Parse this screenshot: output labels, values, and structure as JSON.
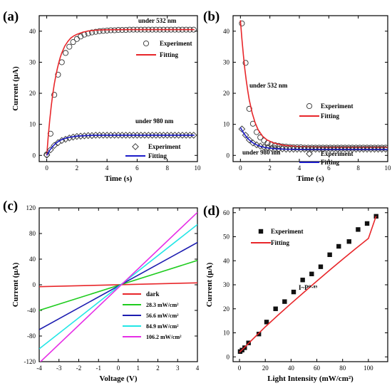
{
  "chart_data": [
    {
      "panel_label": "(a)",
      "type": "scatter",
      "xlabel": "Time (s)",
      "ylabel": "Current (μA)",
      "xlim": [
        -0.5,
        10
      ],
      "ylim": [
        -2,
        45
      ],
      "xticks": [
        0,
        2,
        4,
        6,
        8,
        10
      ],
      "yticks": [
        0,
        10,
        20,
        30,
        40
      ],
      "annotations": [
        "under 532 nm",
        "under 980 nm"
      ],
      "series": [
        {
          "name": "Experiment",
          "kind": "markers",
          "marker": "circle",
          "color": "#333333",
          "x": [
            0.0,
            0.25,
            0.5,
            0.75,
            1.0,
            1.25,
            1.5,
            1.75,
            2.0,
            2.25,
            2.5,
            2.75,
            3.0,
            3.25,
            3.5,
            3.75,
            4.0,
            4.25,
            4.5,
            4.75,
            5.0,
            5.25,
            5.5,
            5.75,
            6.0,
            6.25,
            6.5,
            6.75,
            7.0,
            7.25,
            7.5,
            7.75,
            8.0,
            8.25,
            8.5,
            8.75,
            9.0,
            9.25,
            9.5,
            9.75
          ],
          "y": [
            0.3,
            7.0,
            19.5,
            26.0,
            30.0,
            33.0,
            35.0,
            36.5,
            37.5,
            38.3,
            38.9,
            39.3,
            39.6,
            39.8,
            40.0,
            40.1,
            40.2,
            40.3,
            40.3,
            40.4,
            40.4,
            40.4,
            40.5,
            40.5,
            40.5,
            40.5,
            40.5,
            40.5,
            40.5,
            40.5,
            40.5,
            40.5,
            40.5,
            40.5,
            40.5,
            40.5,
            40.5,
            40.5,
            40.5,
            40.5
          ]
        },
        {
          "name": "Fitting",
          "kind": "line",
          "color": "#e8262a",
          "x": [
            0.0,
            0.1,
            0.2,
            0.3,
            0.4,
            0.5,
            0.6,
            0.7,
            0.8,
            0.9,
            1.0,
            1.2,
            1.4,
            1.6,
            1.8,
            2.0,
            2.4,
            2.8,
            3.2,
            3.6,
            4.0,
            5.0,
            6.0,
            7.0,
            8.0,
            9.0,
            9.8
          ],
          "y": [
            0.0,
            6.2,
            11.4,
            15.9,
            19.7,
            22.9,
            25.6,
            27.9,
            29.9,
            31.6,
            33.0,
            35.2,
            36.7,
            37.8,
            38.5,
            39.0,
            39.7,
            40.1,
            40.3,
            40.4,
            40.45,
            40.5,
            40.5,
            40.5,
            40.5,
            40.5,
            40.5
          ]
        },
        {
          "name": "Experiment",
          "kind": "markers",
          "marker": "diamond",
          "color": "#333333",
          "x": [
            0.0,
            0.25,
            0.5,
            0.75,
            1.0,
            1.25,
            1.5,
            1.75,
            2.0,
            2.25,
            2.5,
            2.75,
            3.0,
            3.25,
            3.5,
            3.75,
            4.0,
            4.25,
            4.5,
            4.75,
            5.0,
            5.25,
            5.5,
            5.75,
            6.0,
            6.25,
            6.5,
            6.75,
            7.0,
            7.25,
            7.5,
            7.75,
            8.0,
            8.25,
            8.5,
            8.75,
            9.0,
            9.25,
            9.5,
            9.75
          ],
          "y": [
            0.1,
            1.8,
            3.2,
            4.1,
            4.8,
            5.2,
            5.6,
            5.9,
            6.1,
            6.2,
            6.3,
            6.4,
            6.4,
            6.5,
            6.5,
            6.5,
            6.5,
            6.5,
            6.5,
            6.5,
            6.5,
            6.5,
            6.5,
            6.5,
            6.5,
            6.5,
            6.5,
            6.5,
            6.5,
            6.5,
            6.5,
            6.5,
            6.5,
            6.5,
            6.5,
            6.5,
            6.5,
            6.5,
            6.5,
            6.5
          ]
        },
        {
          "name": "Fitting",
          "kind": "line",
          "color": "#1c1cc9",
          "x": [
            0.0,
            0.2,
            0.4,
            0.6,
            0.8,
            1.0,
            1.3,
            1.6,
            2.0,
            2.5,
            3.0,
            4.0,
            5.0,
            6.0,
            7.0,
            8.0,
            9.0,
            9.8
          ],
          "y": [
            0.0,
            1.7,
            2.9,
            3.9,
            4.6,
            5.1,
            5.6,
            5.9,
            6.2,
            6.35,
            6.45,
            6.5,
            6.5,
            6.5,
            6.5,
            6.5,
            6.5,
            6.5
          ]
        }
      ]
    },
    {
      "panel_label": "(b)",
      "type": "scatter",
      "xlabel": "Time (s)",
      "ylabel": "",
      "xlim": [
        -0.5,
        10
      ],
      "ylim": [
        -2,
        45
      ],
      "xticks": [
        0,
        2,
        4,
        6,
        8,
        10
      ],
      "yticks": [
        0,
        10,
        20,
        30,
        40
      ],
      "annotations": [
        "under 532 nm",
        "under 980 nm"
      ],
      "series": [
        {
          "name": "Experiment",
          "kind": "markers",
          "marker": "circle",
          "color": "#333333",
          "x": [
            0.1,
            0.35,
            0.6,
            0.85,
            1.1,
            1.35,
            1.6,
            1.85,
            2.1,
            2.35,
            2.6,
            2.85,
            3.1,
            3.35,
            3.6,
            3.85,
            4.1,
            4.35,
            4.6,
            4.85,
            5.1,
            5.35,
            5.6,
            5.85,
            6.1,
            6.35,
            6.6,
            6.85,
            7.1,
            7.35,
            7.6,
            7.85,
            8.1,
            8.35,
            8.6,
            8.85,
            9.1,
            9.35,
            9.6,
            9.85
          ],
          "y": [
            42.5,
            29.8,
            15.0,
            10.2,
            7.5,
            5.8,
            4.8,
            4.0,
            3.6,
            3.3,
            3.1,
            2.9,
            2.8,
            2.7,
            2.6,
            2.6,
            2.6,
            2.5,
            2.5,
            2.5,
            2.5,
            2.5,
            2.5,
            2.5,
            2.5,
            2.5,
            2.5,
            2.5,
            2.5,
            2.5,
            2.5,
            2.5,
            2.5,
            2.5,
            2.5,
            2.5,
            2.5,
            2.5,
            2.5,
            2.5
          ]
        },
        {
          "name": "Fitting",
          "kind": "line",
          "color": "#e8262a",
          "x": [
            0.0,
            0.1,
            0.2,
            0.3,
            0.4,
            0.5,
            0.6,
            0.8,
            1.0,
            1.2,
            1.5,
            1.8,
            2.2,
            2.6,
            3.0,
            4.0,
            5.0,
            6.0,
            7.0,
            8.0,
            9.0,
            10.0
          ],
          "y": [
            43.5,
            37.5,
            32.3,
            27.8,
            24.0,
            20.7,
            17.9,
            13.6,
            10.5,
            8.3,
            6.2,
            5.0,
            4.1,
            3.6,
            3.2,
            2.8,
            2.7,
            2.6,
            2.6,
            2.6,
            2.6,
            2.6
          ]
        },
        {
          "name": "Experiment",
          "kind": "markers",
          "marker": "diamond",
          "color": "#333333",
          "x": [
            0.1,
            0.35,
            0.6,
            0.85,
            1.1,
            1.35,
            1.6,
            1.85,
            2.1,
            2.35,
            2.6,
            2.85,
            3.1,
            3.35,
            3.6,
            3.85,
            4.1,
            4.35,
            4.6,
            4.85,
            5.1,
            5.35,
            5.6,
            5.85,
            6.1,
            6.35,
            6.6,
            6.85,
            7.1,
            7.35,
            7.6,
            7.85,
            8.1,
            8.35,
            8.6,
            8.85,
            9.1,
            9.35,
            9.6,
            9.85
          ],
          "y": [
            8.5,
            6.5,
            5.0,
            4.0,
            3.4,
            3.0,
            2.7,
            2.5,
            2.3,
            2.2,
            2.1,
            2.1,
            2.0,
            2.0,
            2.0,
            2.0,
            2.0,
            2.0,
            2.0,
            2.0,
            2.0,
            2.0,
            2.0,
            2.0,
            2.0,
            2.0,
            2.0,
            2.0,
            2.0,
            2.0,
            2.0,
            2.0,
            2.0,
            2.0,
            2.0,
            2.0,
            2.0,
            2.0,
            2.0,
            2.0
          ]
        },
        {
          "name": "Fitting",
          "kind": "line",
          "color": "#1c1cc9",
          "x": [
            0.0,
            0.2,
            0.4,
            0.6,
            0.8,
            1.0,
            1.3,
            1.6,
            2.0,
            2.5,
            3.0,
            4.0,
            5.0,
            6.0,
            7.0,
            8.0,
            9.0,
            10.0
          ],
          "y": [
            9.0,
            7.3,
            6.0,
            5.0,
            4.2,
            3.6,
            3.0,
            2.6,
            2.3,
            2.1,
            2.0,
            1.95,
            1.9,
            1.9,
            1.9,
            1.9,
            1.9,
            1.9
          ]
        }
      ]
    },
    {
      "panel_label": "(c)",
      "type": "line",
      "xlabel": "Voltage (V)",
      "ylabel": "Current (μA)",
      "xlim": [
        -4,
        4
      ],
      "ylim": [
        -120,
        120
      ],
      "xticks": [
        -4,
        -3,
        -2,
        -1,
        0,
        1,
        2,
        3,
        4
      ],
      "yticks": [
        -120,
        -80,
        -40,
        0,
        40,
        80,
        120
      ],
      "series": [
        {
          "name": "dark",
          "color": "#e8262a",
          "x": [
            -4,
            4
          ],
          "y": [
            -3,
            3
          ]
        },
        {
          "name": "28.3 mW/cm²",
          "color": "#1fcc1f",
          "x": [
            -4,
            4
          ],
          "y": [
            -40,
            38
          ]
        },
        {
          "name": "56.6 mW/cm²",
          "color": "#1c1cb0",
          "x": [
            -4,
            4
          ],
          "y": [
            -70,
            66
          ]
        },
        {
          "name": "84.9 mW/cm²",
          "color": "#22e6e6",
          "x": [
            -4,
            4
          ],
          "y": [
            -100,
            94
          ]
        },
        {
          "name": "106.2 mW/cm²",
          "color": "#e62ee6",
          "x": [
            -4,
            4
          ],
          "y": [
            -122,
            113
          ]
        }
      ]
    },
    {
      "panel_label": "(d)",
      "type": "scatter",
      "xlabel": "Light Intensity (mW/cm²)",
      "ylabel": "Current (μA)",
      "xlim": [
        -5,
        115
      ],
      "ylim": [
        -2,
        62
      ],
      "xticks": [
        0,
        20,
        40,
        60,
        80,
        100
      ],
      "yticks": [
        0,
        10,
        20,
        30,
        40,
        50,
        60
      ],
      "annotation": "I~P⁰·⁸⁹",
      "series": [
        {
          "name": "Experiment",
          "kind": "markers",
          "marker": "square",
          "color": "#111111",
          "x": [
            0.5,
            2,
            4,
            7,
            15,
            21,
            28,
            35,
            42,
            49,
            56,
            63,
            70,
            77,
            85,
            92,
            99,
            106
          ],
          "y": [
            2.2,
            2.8,
            3.8,
            5.8,
            9.5,
            14.5,
            20.0,
            23.0,
            27.0,
            32.0,
            34.5,
            37.5,
            42.5,
            46.0,
            48.0,
            53.0,
            55.5,
            58.5
          ]
        },
        {
          "name": "Fitting",
          "kind": "line",
          "color": "#e8262a",
          "x": [
            0,
            5,
            10,
            20,
            30,
            40,
            50,
            60,
            70,
            80,
            90,
            100,
            106
          ],
          "y": [
            1.9,
            4.5,
            7.2,
            12.5,
            17.4,
            22.2,
            26.9,
            31.5,
            36.1,
            40.6,
            45.0,
            49.3,
            58.6
          ]
        }
      ]
    }
  ]
}
